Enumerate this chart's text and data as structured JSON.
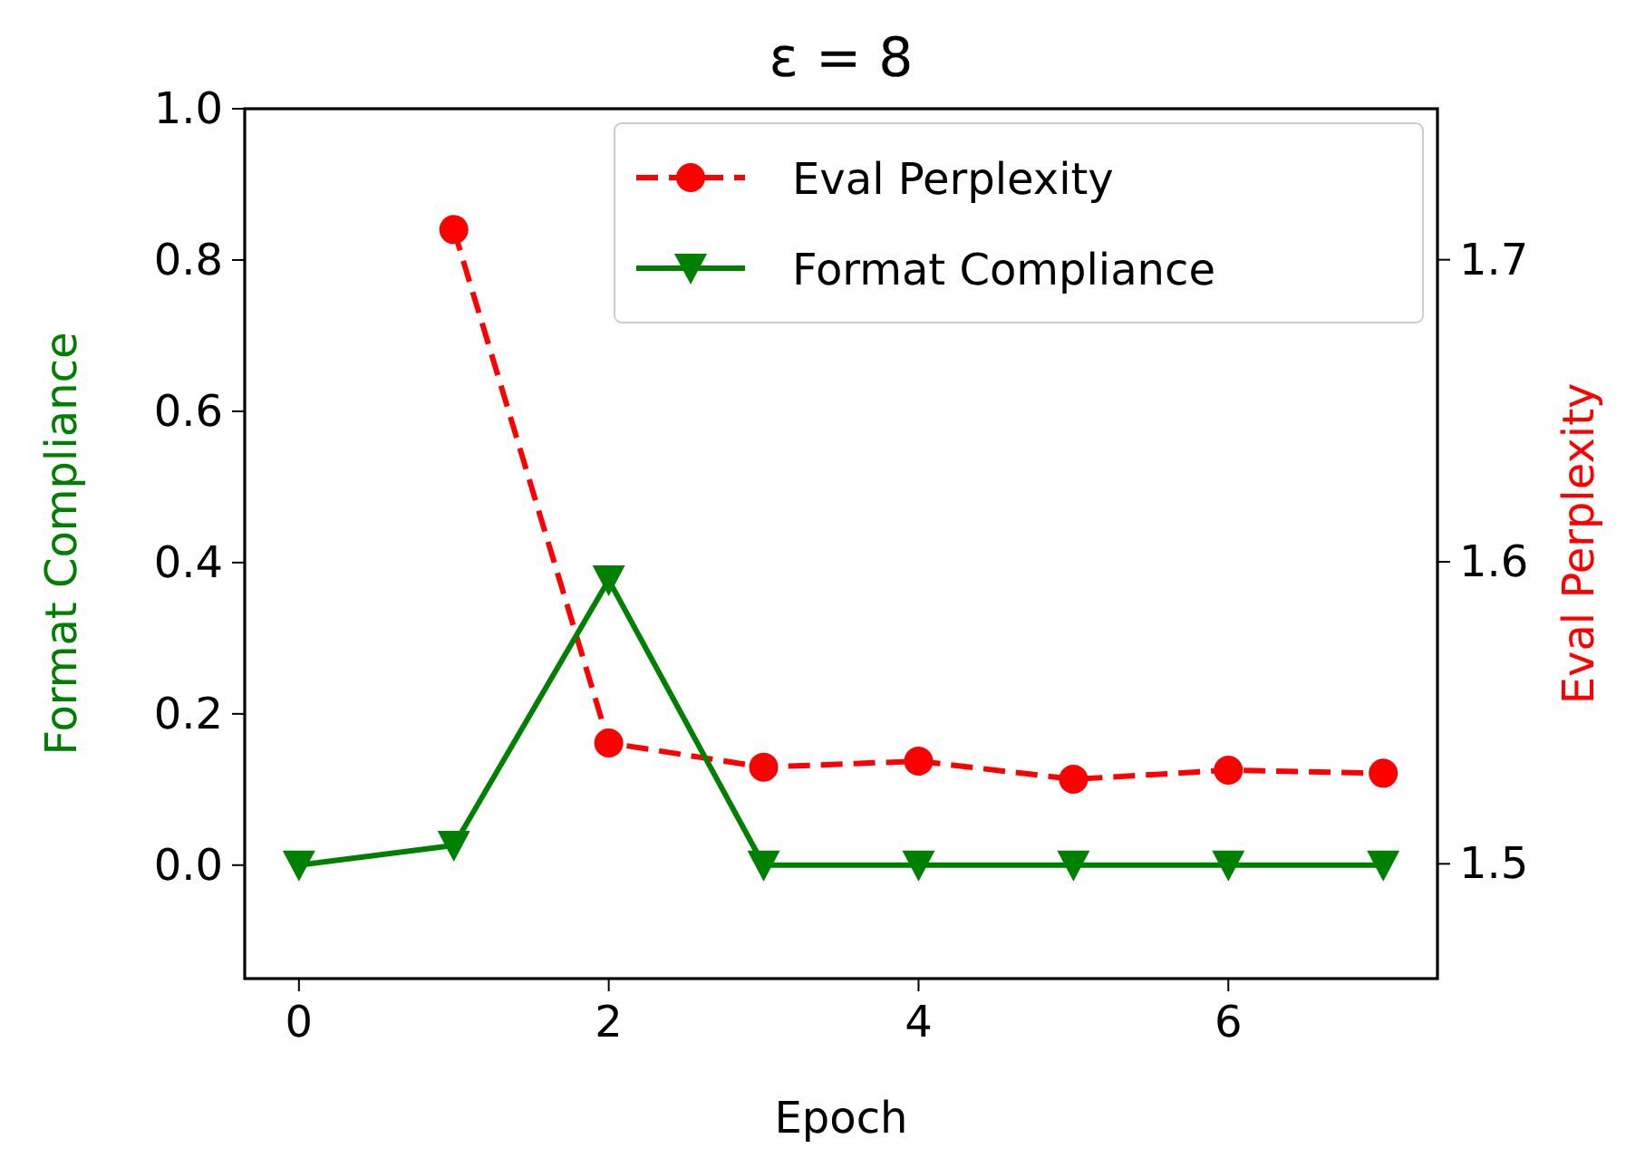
{
  "chart_data": {
    "type": "line",
    "title": "ε = 8",
    "xlabel": "Epoch",
    "ylabel": "Format Compliance",
    "y2label": "Eval Perplexity",
    "x": [
      0,
      1,
      2,
      3,
      4,
      5,
      6,
      7
    ],
    "xlim": [
      -0.35,
      7.35
    ],
    "xticks": [
      0,
      2,
      4,
      6
    ],
    "ylim": [
      -0.15,
      1.0
    ],
    "yticks": [
      {
        "value": 0,
        "label": "0.0"
      },
      0.2,
      0.4,
      0.6,
      0.8,
      {
        "value": 1,
        "label": "1.0"
      }
    ],
    "y2lim": [
      1.462,
      1.75
    ],
    "y2ticks": [
      1.5,
      1.6,
      1.7
    ],
    "legend": "top right",
    "grid": false,
    "series": [
      {
        "name": "Eval Perplexity",
        "color": "#ff0000",
        "axis": "y2",
        "marker": "circle",
        "line_style": "dashed",
        "values": [
          null,
          1.71,
          1.54,
          1.532,
          1.534,
          1.528,
          1.531,
          1.53
        ]
      },
      {
        "name": "Format Compliance",
        "color": "#008000",
        "axis": "y",
        "marker": "triangle",
        "line_style": "solid",
        "values": [
          0,
          0.026,
          0.377,
          0,
          0,
          0,
          0,
          0
        ]
      }
    ]
  }
}
